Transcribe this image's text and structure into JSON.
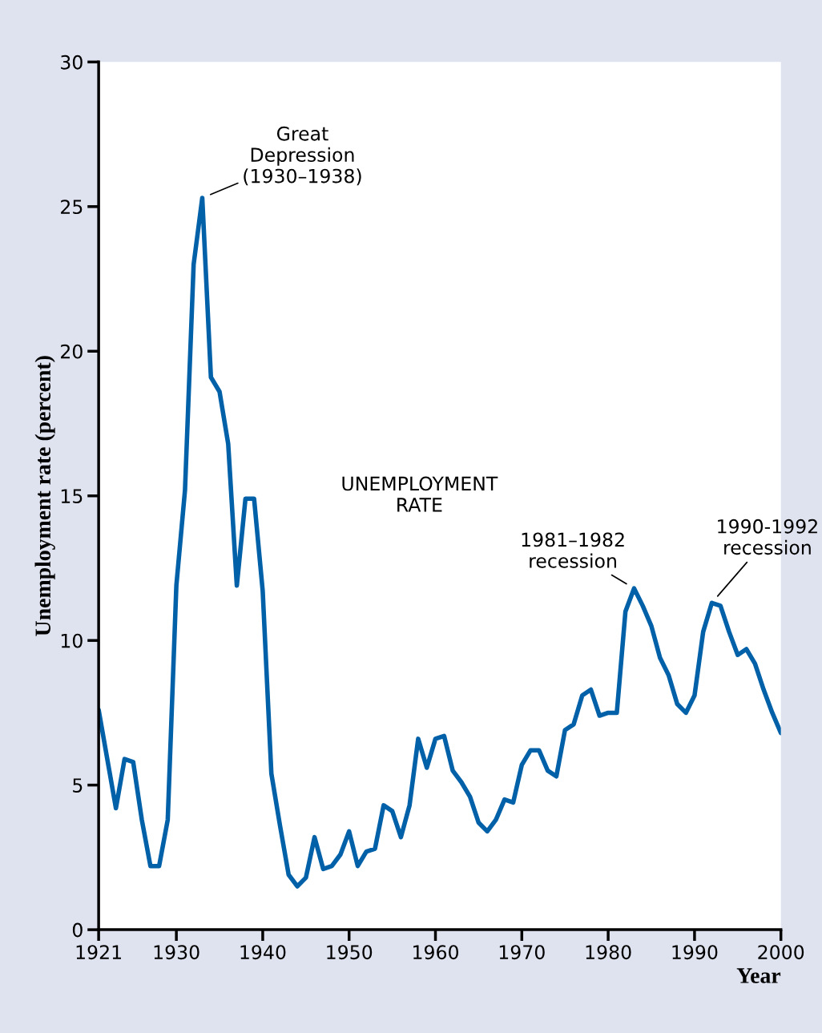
{
  "chart_data": {
    "type": "line",
    "xlabel": "Year",
    "ylabel": "Unemployment rate (percent)",
    "x": [
      1921,
      1923,
      1924,
      1925,
      1926,
      1927,
      1928,
      1929,
      1930,
      1931,
      1932,
      1933,
      1934,
      1935,
      1936,
      1937,
      1938,
      1939,
      1940,
      1941,
      1942,
      1943,
      1944,
      1945,
      1946,
      1947,
      1948,
      1949,
      1950,
      1951,
      1952,
      1953,
      1954,
      1955,
      1956,
      1957,
      1958,
      1959,
      1960,
      1961,
      1962,
      1963,
      1964,
      1965,
      1966,
      1967,
      1968,
      1969,
      1970,
      1971,
      1972,
      1973,
      1974,
      1975,
      1976,
      1977,
      1978,
      1979,
      1980,
      1981,
      1982,
      1983,
      1984,
      1985,
      1986,
      1987,
      1988,
      1989,
      1990,
      1991,
      1992,
      1993,
      1994,
      1995,
      1996,
      1997,
      1998,
      1999,
      2000
    ],
    "series": [
      {
        "color": "#0060a8",
        "values": [
          7.6,
          4.2,
          5.9,
          5.8,
          3.8,
          2.2,
          2.2,
          3.8,
          11.9,
          15.2,
          23.0,
          25.3,
          19.1,
          18.6,
          16.8,
          11.9,
          14.9,
          14.9,
          11.7,
          5.4,
          3.6,
          1.9,
          1.5,
          1.8,
          3.2,
          2.1,
          2.2,
          2.6,
          3.4,
          2.2,
          2.7,
          2.8,
          4.3,
          4.1,
          3.2,
          4.3,
          6.6,
          5.6,
          6.6,
          6.7,
          5.5,
          5.1,
          4.6,
          3.7,
          3.4,
          3.8,
          4.5,
          4.4,
          5.7,
          6.2,
          6.2,
          5.5,
          5.3,
          6.9,
          7.1,
          8.1,
          8.3,
          7.4,
          7.5,
          7.5,
          11.0,
          11.8,
          11.2,
          10.5,
          9.4,
          8.8,
          7.8,
          7.5,
          8.1,
          10.3,
          11.3,
          11.2,
          10.3,
          9.5,
          9.7,
          9.2,
          8.3,
          7.5,
          6.8
        ]
      }
    ],
    "xlim": [
      1921,
      2000
    ],
    "xticks": [
      1921,
      1930,
      1940,
      1950,
      1960,
      1970,
      1980,
      1990,
      2000
    ],
    "ylim": [
      0,
      30
    ],
    "yticks": [
      0,
      5,
      10,
      15,
      20,
      25,
      30
    ],
    "marker": "none",
    "line_style": "solid",
    "grid": false,
    "annotations": [
      {
        "text": "Great\nDepression\n(1930–1938)",
        "x": 1933,
        "y": 25.3
      },
      {
        "text": "1981–1982\nrecession",
        "x": 1983,
        "y": 11.8
      },
      {
        "text": "1990-1992\nrecession",
        "x": 1992,
        "y": 11.3
      },
      "UNEMPLOYMENT\nRATE"
    ]
  }
}
